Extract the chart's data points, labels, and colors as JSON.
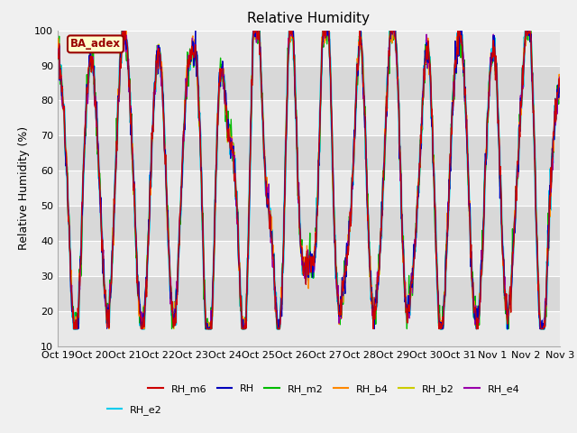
{
  "title": "Relative Humidity",
  "ylabel": "Relative Humidity (%)",
  "ylim": [
    10,
    100
  ],
  "yticks": [
    20,
    30,
    40,
    50,
    60,
    70,
    80,
    90,
    100
  ],
  "xtick_labels": [
    "Oct 19",
    "Oct 20",
    "Oct 21",
    "Oct 22",
    "Oct 23",
    "Oct 24",
    "Oct 25",
    "Oct 26",
    "Oct 27",
    "Oct 28",
    "Oct 29",
    "Oct 30",
    "Oct 31",
    "Nov 1",
    "Nov 2",
    "Nov 3"
  ],
  "series_colors": {
    "RH_m6": "#cc0000",
    "RH": "#0000bb",
    "RH_m2": "#00bb00",
    "RH_b4": "#ff8800",
    "RH_b2": "#cccc00",
    "RH_e4": "#9900aa",
    "RH_e2": "#00ccee"
  },
  "series_order": [
    "RH_e2",
    "RH_b2",
    "RH_m2",
    "RH_b4",
    "RH_e4",
    "RH",
    "RH_m6"
  ],
  "legend_order": [
    "RH_m6",
    "RH",
    "RH_m2",
    "RH_b4",
    "RH_b2",
    "RH_e4",
    "RH_e2"
  ],
  "ba_adex_label": "BA_adex",
  "ba_adex_color": "#990000",
  "ba_adex_bg": "#ffffcc",
  "background_color": "#f0f0f0",
  "plot_bg_bands": [
    "#e8e8e8",
    "#d8d8d8"
  ],
  "grid_color": "#ffffff",
  "title_fontsize": 11,
  "axis_fontsize": 9,
  "tick_fontsize": 8,
  "legend_fontsize": 8,
  "num_points": 1000,
  "seed": 42
}
